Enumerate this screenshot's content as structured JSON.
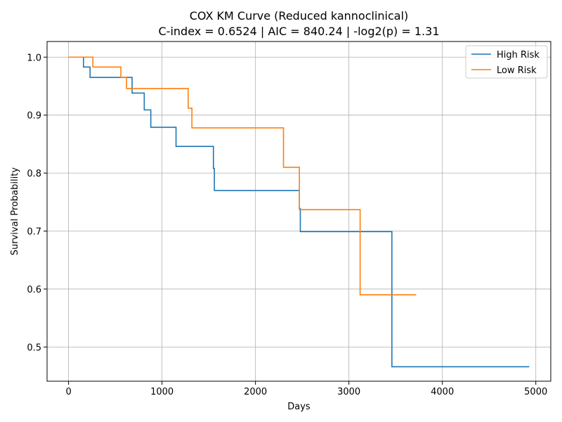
{
  "chart_data": {
    "type": "line",
    "step": "post",
    "title": "COX KM Curve (Reduced kannoclinical)",
    "subtitle": "C-index = 0.6524 | AIC = 840.24 | -log2(p) = 1.31",
    "xlabel": "Days",
    "ylabel": "Survival Probability",
    "xlim": [
      -230,
      5160
    ],
    "ylim": [
      0.441,
      1.027
    ],
    "xticks": [
      0,
      1000,
      2000,
      3000,
      4000,
      5000
    ],
    "yticks": [
      0.5,
      0.6,
      0.7,
      0.8,
      0.9,
      1.0
    ],
    "xtick_labels": [
      "0",
      "1000",
      "2000",
      "3000",
      "4000",
      "5000"
    ],
    "ytick_labels": [
      "0.5",
      "0.6",
      "0.7",
      "0.8",
      "0.9",
      "1.0"
    ],
    "grid": true,
    "legend_position": "top-right",
    "series": [
      {
        "name": "High Risk",
        "color": "#1f77b4",
        "x": [
          0,
          160,
          230,
          680,
          810,
          880,
          1150,
          1550,
          1560,
          2470,
          2480,
          3460,
          4930
        ],
        "y": [
          1.0,
          0.983,
          0.965,
          0.938,
          0.909,
          0.879,
          0.846,
          0.808,
          0.77,
          0.739,
          0.699,
          0.466,
          0.466
        ]
      },
      {
        "name": "Low Risk",
        "color": "#ff7f0e",
        "x": [
          0,
          260,
          560,
          620,
          1280,
          1320,
          2300,
          2470,
          3120,
          3720
        ],
        "y": [
          1.0,
          0.983,
          0.965,
          0.946,
          0.912,
          0.878,
          0.81,
          0.737,
          0.59,
          0.59
        ]
      }
    ]
  }
}
